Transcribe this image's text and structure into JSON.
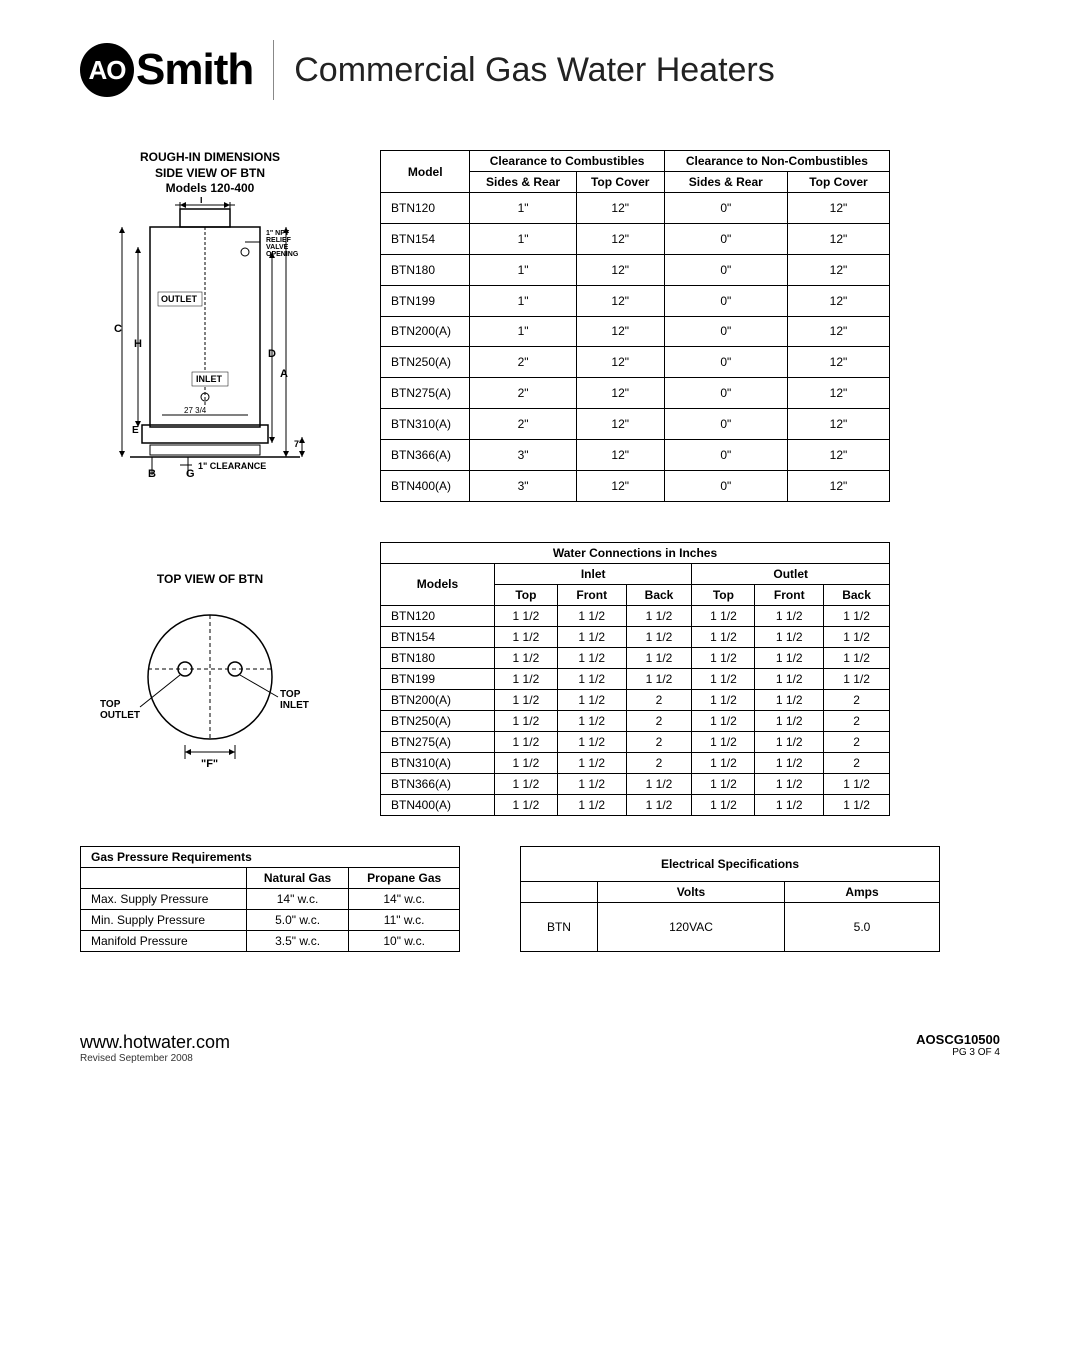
{
  "header": {
    "logo_circle": "AO",
    "logo_text": "Smith",
    "title": "Commercial Gas Water Heaters"
  },
  "side_view": {
    "heading_l1": "ROUGH-IN DIMENSIONS",
    "heading_l2": "SIDE VIEW OF BTN",
    "heading_l3": "Models 120-400",
    "labels": {
      "relief": "1\" NPT RELIEF VALVE OPENING",
      "outlet": "OUTLET",
      "inlet": "INLET",
      "clearance": "1\" CLEARANCE",
      "dim_27": "27 3/4",
      "dim_7": "7\""
    }
  },
  "top_view": {
    "heading": "TOP VIEW OF BTN",
    "labels": {
      "top_outlet": "TOP OUTLET",
      "top_inlet": "TOP INLET",
      "f": "\"F\""
    }
  },
  "clearance_table": {
    "header_comb": "Clearance to Combustibles",
    "header_noncomb": "Clearance to Non-Combustibles",
    "col_model": "Model",
    "col_sides": "Sides & Rear",
    "col_top": "Top Cover",
    "rows": [
      {
        "model": "BTN120",
        "c_sr": "1\"",
        "c_tc": "12\"",
        "n_sr": "0\"",
        "n_tc": "12\""
      },
      {
        "model": "BTN154",
        "c_sr": "1\"",
        "c_tc": "12\"",
        "n_sr": "0\"",
        "n_tc": "12\""
      },
      {
        "model": "BTN180",
        "c_sr": "1\"",
        "c_tc": "12\"",
        "n_sr": "0\"",
        "n_tc": "12\""
      },
      {
        "model": "BTN199",
        "c_sr": "1\"",
        "c_tc": "12\"",
        "n_sr": "0\"",
        "n_tc": "12\""
      },
      {
        "model": "BTN200(A)",
        "c_sr": "1\"",
        "c_tc": "12\"",
        "n_sr": "0\"",
        "n_tc": "12\""
      },
      {
        "model": "BTN250(A)",
        "c_sr": "2\"",
        "c_tc": "12\"",
        "n_sr": "0\"",
        "n_tc": "12\""
      },
      {
        "model": "BTN275(A)",
        "c_sr": "2\"",
        "c_tc": "12\"",
        "n_sr": "0\"",
        "n_tc": "12\""
      },
      {
        "model": "BTN310(A)",
        "c_sr": "2\"",
        "c_tc": "12\"",
        "n_sr": "0\"",
        "n_tc": "12\""
      },
      {
        "model": "BTN366(A)",
        "c_sr": "3\"",
        "c_tc": "12\"",
        "n_sr": "0\"",
        "n_tc": "12\""
      },
      {
        "model": "BTN400(A)",
        "c_sr": "3\"",
        "c_tc": "12\"",
        "n_sr": "0\"",
        "n_tc": "12\""
      }
    ]
  },
  "water_table": {
    "title": "Water Connections in Inches",
    "col_inlet": "Inlet",
    "col_outlet": "Outlet",
    "col_models": "Models",
    "col_top": "Top",
    "col_front": "Front",
    "col_back": "Back",
    "rows": [
      {
        "model": "BTN120",
        "it": "1 1/2",
        "if": "1 1/2",
        "ib": "1 1/2",
        "ot": "1 1/2",
        "of": "1 1/2",
        "ob": "1 1/2"
      },
      {
        "model": "BTN154",
        "it": "1 1/2",
        "if": "1 1/2",
        "ib": "1 1/2",
        "ot": "1 1/2",
        "of": "1 1/2",
        "ob": "1 1/2"
      },
      {
        "model": "BTN180",
        "it": "1 1/2",
        "if": "1 1/2",
        "ib": "1 1/2",
        "ot": "1 1/2",
        "of": "1 1/2",
        "ob": "1 1/2"
      },
      {
        "model": "BTN199",
        "it": "1 1/2",
        "if": "1 1/2",
        "ib": "1 1/2",
        "ot": "1 1/2",
        "of": "1 1/2",
        "ob": "1 1/2"
      },
      {
        "model": "BTN200(A)",
        "it": "1 1/2",
        "if": "1 1/2",
        "ib": "2",
        "ot": "1 1/2",
        "of": "1 1/2",
        "ob": "2"
      },
      {
        "model": "BTN250(A)",
        "it": "1 1/2",
        "if": "1 1/2",
        "ib": "2",
        "ot": "1 1/2",
        "of": "1 1/2",
        "ob": "2"
      },
      {
        "model": "BTN275(A)",
        "it": "1 1/2",
        "if": "1 1/2",
        "ib": "2",
        "ot": "1 1/2",
        "of": "1 1/2",
        "ob": "2"
      },
      {
        "model": "BTN310(A)",
        "it": "1 1/2",
        "if": "1 1/2",
        "ib": "2",
        "ot": "1 1/2",
        "of": "1 1/2",
        "ob": "2"
      },
      {
        "model": "BTN366(A)",
        "it": "1 1/2",
        "if": "1 1/2",
        "ib": "1 1/2",
        "ot": "1 1/2",
        "of": "1 1/2",
        "ob": "1 1/2"
      },
      {
        "model": "BTN400(A)",
        "it": "1 1/2",
        "if": "1 1/2",
        "ib": "1 1/2",
        "ot": "1 1/2",
        "of": "1 1/2",
        "ob": "1 1/2"
      }
    ]
  },
  "gas_table": {
    "title": "Gas Pressure Requirements",
    "col_ng": "Natural Gas",
    "col_pg": "Propane Gas",
    "rows": [
      {
        "label": "Max. Supply Pressure",
        "ng": "14\" w.c.",
        "pg": "14\" w.c."
      },
      {
        "label": "Min. Supply Pressure",
        "ng": "5.0\" w.c.",
        "pg": "11\" w.c."
      },
      {
        "label": "Manifold Pressure",
        "ng": "3.5\" w.c.",
        "pg": "10\" w.c."
      }
    ]
  },
  "elec_table": {
    "title": "Electrical Specifications",
    "col_volts": "Volts",
    "col_amps": "Amps",
    "row_label": "BTN",
    "row_volts": "120VAC",
    "row_amps": "5.0"
  },
  "footer": {
    "url": "www.hotwater.com",
    "revised": "Revised September 2008",
    "code": "AOSCG10500",
    "page": "PG 3 OF 4"
  },
  "style": {
    "background_color": "#ffffff",
    "text_color": "#000000",
    "border_color": "#000000",
    "body_fontsize": 12,
    "title_fontsize": 34,
    "logo_fontsize": 44
  }
}
